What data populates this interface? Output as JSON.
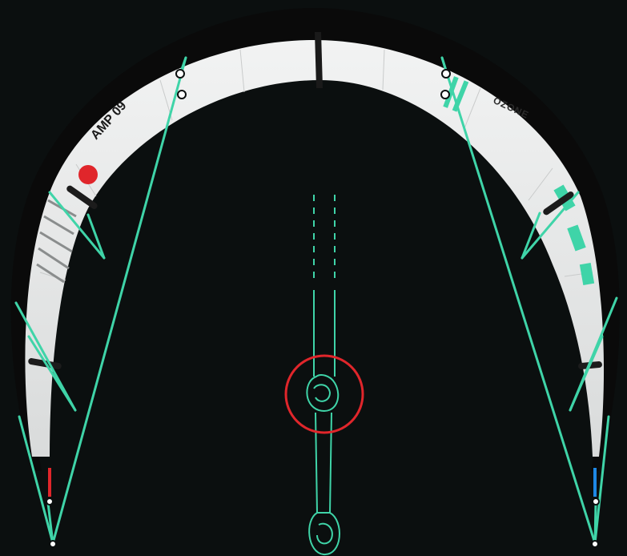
{
  "kite": {
    "model_label": "AMP 09",
    "brand_label": "OZONE",
    "colors": {
      "background": "#0b0f0f",
      "leading_edge": "#0a0a0a",
      "canopy": "#e9eaea",
      "lines": "#3fd4a8",
      "left_marker": "#e0262b",
      "right_marker": "#1e88e5",
      "focus_ring": "#e0262b"
    }
  }
}
